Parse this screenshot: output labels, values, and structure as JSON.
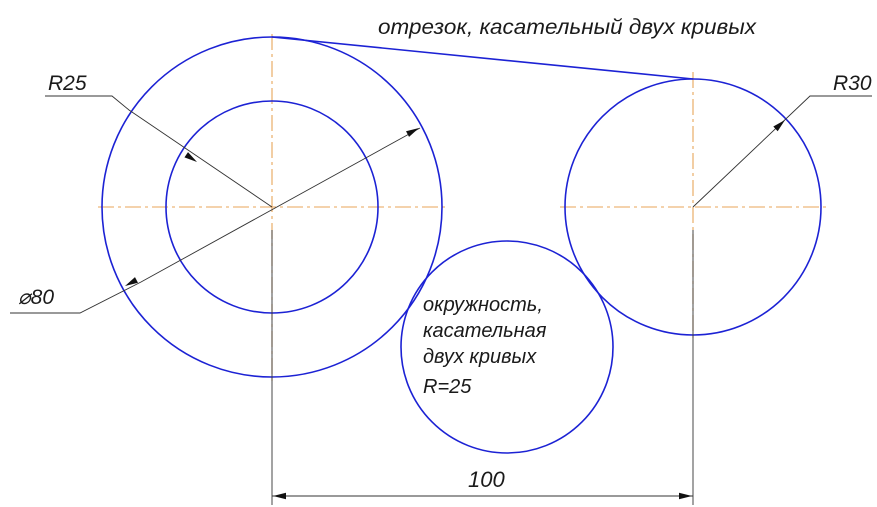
{
  "labels": {
    "tangent_segment": "отрезок, касательный двух кривых",
    "radius_left": "R25",
    "radius_right": "R30",
    "diameter_left": "⌀80",
    "circle_note_line1": "окружность,",
    "circle_note_line2": "касательная",
    "circle_note_line3": "двух кривых",
    "circle_note_line4": "R=25",
    "dimension_distance": "100"
  },
  "colors": {
    "geometry": "#1c22d4",
    "centerline": "#e8a55a",
    "dimension": "#333333",
    "text": "#1a1a1a"
  }
}
